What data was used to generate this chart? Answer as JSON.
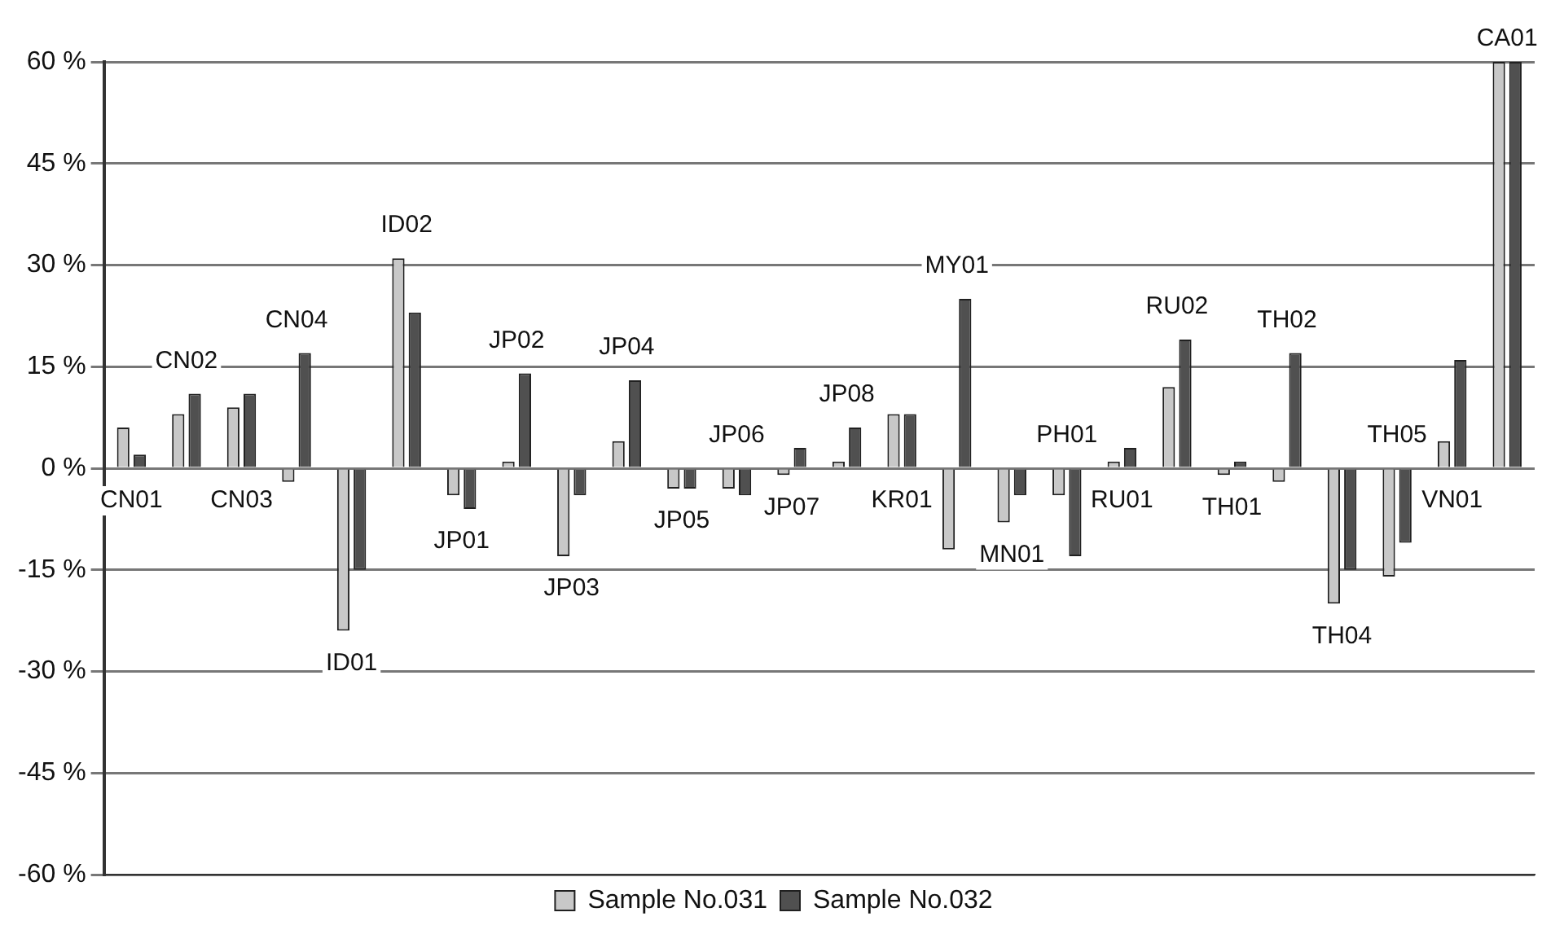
{
  "chart_data": {
    "type": "bar",
    "categories": [
      "CN01",
      "CN02",
      "CN03",
      "CN04",
      "ID01",
      "ID02",
      "JP01",
      "JP02",
      "JP03",
      "JP04",
      "JP05",
      "JP06",
      "JP07",
      "JP08",
      "KR01",
      "MY01",
      "MN01",
      "PH01",
      "RU01",
      "RU02",
      "TH01",
      "TH02",
      "TH04",
      "TH05",
      "VN01",
      "CA01"
    ],
    "series": [
      {
        "name": "Sample No.031",
        "color": "#c8c8c8",
        "values": [
          6,
          8,
          9,
          -2,
          -24,
          31,
          -4,
          1,
          -13,
          4,
          -3,
          -3,
          -1,
          1,
          8,
          -12,
          -8,
          -4,
          1,
          12,
          -1,
          -2,
          -20,
          -16,
          4,
          60
        ]
      },
      {
        "name": "Sample No.032",
        "color": "#505050",
        "values": [
          2,
          11,
          11,
          17,
          -15,
          23,
          -6,
          14,
          -4,
          13,
          -3,
          -4,
          3,
          6,
          8,
          25,
          -4,
          -13,
          3,
          19,
          1,
          17,
          -15,
          -11,
          16,
          60
        ]
      }
    ],
    "ylim": [
      -60,
      60
    ],
    "yticks": [
      {
        "value": -60,
        "label": "-60 %"
      },
      {
        "value": -45,
        "label": "-45 %"
      },
      {
        "value": -30,
        "label": "-30 %"
      },
      {
        "value": -15,
        "label": "-15 %"
      },
      {
        "value": 0,
        "label": "0 %"
      },
      {
        "value": 15,
        "label": "15 %"
      },
      {
        "value": 30,
        "label": "30 %"
      },
      {
        "value": 45,
        "label": "45 %"
      },
      {
        "value": 60,
        "label": "60 %"
      }
    ],
    "grid": "y",
    "legend": "bottom",
    "tick_labels": "y"
  }
}
